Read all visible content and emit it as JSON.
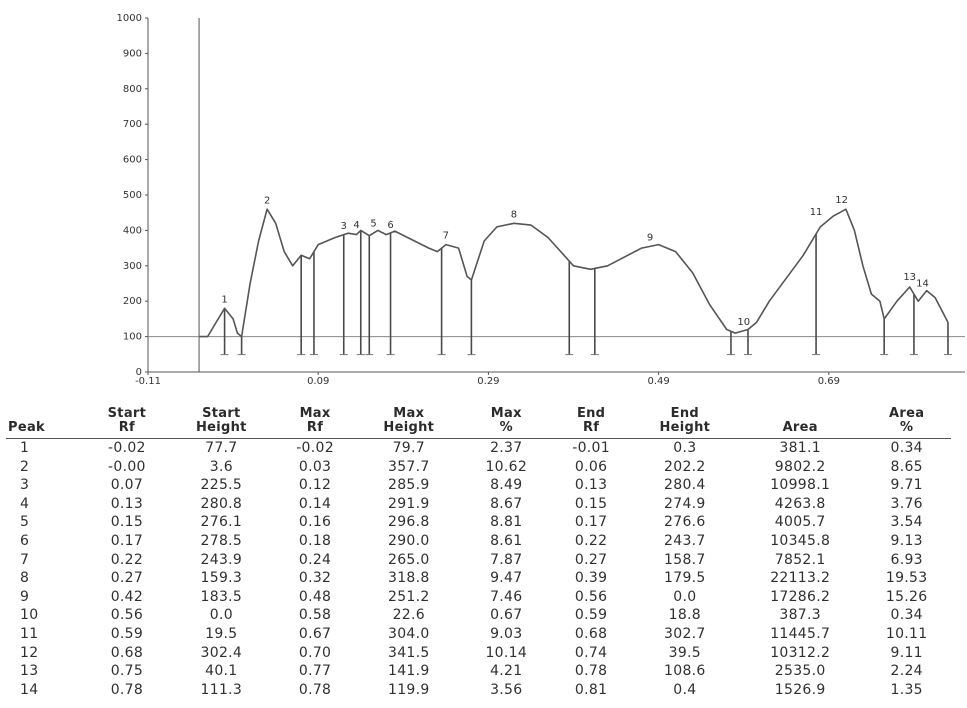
{
  "chart_data": {
    "type": "line",
    "y_ticks": [
      "0",
      "100",
      "200",
      "300",
      "400",
      "500",
      "600",
      "700",
      "800",
      "900",
      "1000"
    ],
    "x_ticks": [
      "-0.11",
      "0.09",
      "0.29",
      "0.49",
      "0.69"
    ],
    "ylim": [
      0,
      1000
    ],
    "xlim": [
      -0.11,
      0.85
    ],
    "baseline_y": 100,
    "trace": [
      [
        -0.05,
        100
      ],
      [
        -0.04,
        100
      ],
      [
        -0.03,
        140
      ],
      [
        -0.02,
        180
      ],
      [
        -0.01,
        150
      ],
      [
        -0.005,
        110
      ],
      [
        0.0,
        100
      ],
      [
        0.01,
        250
      ],
      [
        0.02,
        370
      ],
      [
        0.03,
        460
      ],
      [
        0.04,
        420
      ],
      [
        0.05,
        340
      ],
      [
        0.06,
        300
      ],
      [
        0.07,
        330
      ],
      [
        0.08,
        320
      ],
      [
        0.09,
        360
      ],
      [
        0.11,
        380
      ],
      [
        0.125,
        392
      ],
      [
        0.135,
        388
      ],
      [
        0.14,
        400
      ],
      [
        0.15,
        385
      ],
      [
        0.16,
        400
      ],
      [
        0.17,
        388
      ],
      [
        0.18,
        398
      ],
      [
        0.22,
        350
      ],
      [
        0.23,
        340
      ],
      [
        0.24,
        360
      ],
      [
        0.255,
        350
      ],
      [
        0.265,
        270
      ],
      [
        0.27,
        260
      ],
      [
        0.285,
        370
      ],
      [
        0.3,
        410
      ],
      [
        0.32,
        420
      ],
      [
        0.34,
        415
      ],
      [
        0.36,
        380
      ],
      [
        0.39,
        300
      ],
      [
        0.41,
        290
      ],
      [
        0.43,
        300
      ],
      [
        0.47,
        350
      ],
      [
        0.49,
        360
      ],
      [
        0.51,
        340
      ],
      [
        0.53,
        280
      ],
      [
        0.55,
        190
      ],
      [
        0.57,
        120
      ],
      [
        0.58,
        110
      ],
      [
        0.595,
        120
      ],
      [
        0.605,
        140
      ],
      [
        0.62,
        200
      ],
      [
        0.66,
        330
      ],
      [
        0.68,
        410
      ],
      [
        0.695,
        440
      ],
      [
        0.71,
        460
      ],
      [
        0.72,
        400
      ],
      [
        0.73,
        300
      ],
      [
        0.74,
        220
      ],
      [
        0.75,
        200
      ],
      [
        0.755,
        150
      ],
      [
        0.77,
        200
      ],
      [
        0.785,
        240
      ],
      [
        0.795,
        200
      ],
      [
        0.805,
        230
      ],
      [
        0.815,
        210
      ],
      [
        0.83,
        140
      ]
    ],
    "peak_labels": [
      {
        "label": "1",
        "x": -0.02,
        "y": 185
      },
      {
        "label": "2",
        "x": 0.03,
        "y": 465
      },
      {
        "label": "3",
        "x": 0.12,
        "y": 393
      },
      {
        "label": "4",
        "x": 0.135,
        "y": 395
      },
      {
        "label": "5",
        "x": 0.155,
        "y": 400
      },
      {
        "label": "6",
        "x": 0.175,
        "y": 395
      },
      {
        "label": "7",
        "x": 0.24,
        "y": 366
      },
      {
        "label": "8",
        "x": 0.32,
        "y": 425
      },
      {
        "label": "9",
        "x": 0.48,
        "y": 360
      },
      {
        "label": "10",
        "x": 0.59,
        "y": 122
      },
      {
        "label": "11",
        "x": 0.675,
        "y": 432
      },
      {
        "label": "12",
        "x": 0.705,
        "y": 466
      },
      {
        "label": "13",
        "x": 0.785,
        "y": 248
      },
      {
        "label": "14",
        "x": 0.8,
        "y": 230
      }
    ],
    "peak_lines": [
      -0.02,
      0.0,
      0.07,
      0.085,
      0.12,
      0.14,
      0.15,
      0.175,
      0.235,
      0.27,
      0.385,
      0.415,
      0.575,
      0.595,
      0.675,
      0.755,
      0.79,
      0.83
    ],
    "columns": [
      [
        "Peak",
        ""
      ],
      [
        "Start",
        "Rf"
      ],
      [
        "Start",
        "Height"
      ],
      [
        "Max",
        "Rf"
      ],
      [
        "Max",
        "Height"
      ],
      [
        "Max",
        "%"
      ],
      [
        "End",
        "Rf"
      ],
      [
        "End",
        "Height"
      ],
      [
        "Area",
        ""
      ],
      [
        "Area",
        "%"
      ]
    ],
    "rows": [
      [
        "1",
        "-0.02",
        "77.7",
        "-0.02",
        "79.7",
        "2.37",
        "-0.01",
        "0.3",
        "381.1",
        "0.34"
      ],
      [
        "2",
        "-0.00",
        "3.6",
        "0.03",
        "357.7",
        "10.62",
        "0.06",
        "202.2",
        "9802.2",
        "8.65"
      ],
      [
        "3",
        "0.07",
        "225.5",
        "0.12",
        "285.9",
        "8.49",
        "0.13",
        "280.4",
        "10998.1",
        "9.71"
      ],
      [
        "4",
        "0.13",
        "280.8",
        "0.14",
        "291.9",
        "8.67",
        "0.15",
        "274.9",
        "4263.8",
        "3.76"
      ],
      [
        "5",
        "0.15",
        "276.1",
        "0.16",
        "296.8",
        "8.81",
        "0.17",
        "276.6",
        "4005.7",
        "3.54"
      ],
      [
        "6",
        "0.17",
        "278.5",
        "0.18",
        "290.0",
        "8.61",
        "0.22",
        "243.7",
        "10345.8",
        "9.13"
      ],
      [
        "7",
        "0.22",
        "243.9",
        "0.24",
        "265.0",
        "7.87",
        "0.27",
        "158.7",
        "7852.1",
        "6.93"
      ],
      [
        "8",
        "0.27",
        "159.3",
        "0.32",
        "318.8",
        "9.47",
        "0.39",
        "179.5",
        "22113.2",
        "19.53"
      ],
      [
        "9",
        "0.42",
        "183.5",
        "0.48",
        "251.2",
        "7.46",
        "0.56",
        "0.0",
        "17286.2",
        "15.26"
      ],
      [
        "10",
        "0.56",
        "0.0",
        "0.58",
        "22.6",
        "0.67",
        "0.59",
        "18.8",
        "387.3",
        "0.34"
      ],
      [
        "11",
        "0.59",
        "19.5",
        "0.67",
        "304.0",
        "9.03",
        "0.68",
        "302.7",
        "11445.7",
        "10.11"
      ],
      [
        "12",
        "0.68",
        "302.4",
        "0.70",
        "341.5",
        "10.14",
        "0.74",
        "39.5",
        "10312.2",
        "9.11"
      ],
      [
        "13",
        "0.75",
        "40.1",
        "0.77",
        "141.9",
        "4.21",
        "0.78",
        "108.6",
        "2535.0",
        "2.24"
      ],
      [
        "14",
        "0.78",
        "111.3",
        "0.78",
        "119.9",
        "3.56",
        "0.81",
        "0.4",
        "1526.9",
        "1.35"
      ]
    ],
    "colors": {
      "trace": "#555555",
      "axis": "#555555",
      "text": "#333333"
    }
  }
}
